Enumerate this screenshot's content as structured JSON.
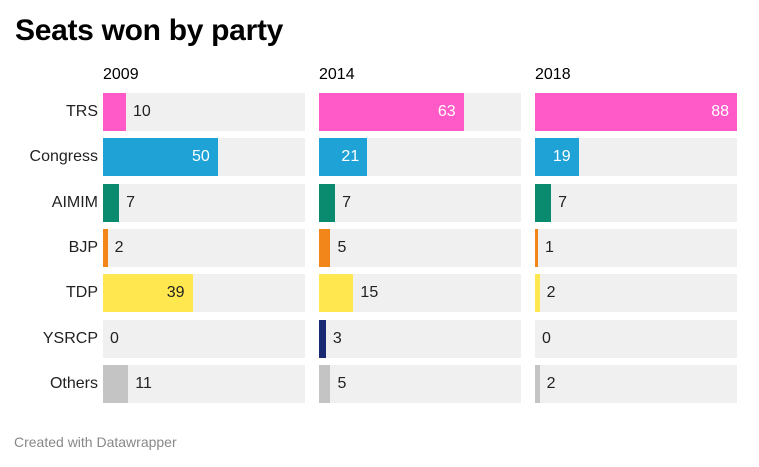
{
  "title": "Seats won by party",
  "footer": "Created with Datawrapper",
  "chart_data": {
    "type": "bar",
    "title": "Seats won by party",
    "xlabel": "",
    "ylabel": "",
    "xlim": [
      0,
      88
    ],
    "categories": [
      "TRS",
      "Congress",
      "AIMIM",
      "BJP",
      "TDP",
      "YSRCP",
      "Others"
    ],
    "colors": [
      "#ff5ac8",
      "#1fa3d6",
      "#0a8a6e",
      "#f2861a",
      "#ffe84f",
      "#1a2a72",
      "#c4c4c4"
    ],
    "label_colors": [
      "#ffffff",
      "#ffffff",
      "#222222",
      "#222222",
      "#222222",
      "#222222",
      "#222222"
    ],
    "series": [
      {
        "name": "2009",
        "values": [
          10,
          50,
          7,
          2,
          39,
          0,
          11
        ]
      },
      {
        "name": "2014",
        "values": [
          63,
          21,
          7,
          5,
          15,
          3,
          5
        ]
      },
      {
        "name": "2018",
        "values": [
          88,
          19,
          7,
          1,
          2,
          0,
          2
        ]
      }
    ]
  }
}
